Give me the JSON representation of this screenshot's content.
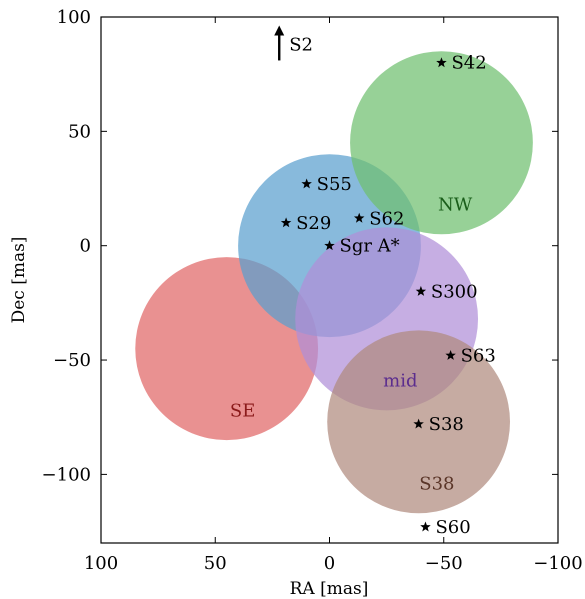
{
  "chart_data": {
    "type": "scatter",
    "xlabel": "RA [mas]",
    "ylabel": "Dec [mas]",
    "xlim": [
      100,
      -100
    ],
    "ylim": [
      -130,
      100
    ],
    "x_inverted": true,
    "xticks": [
      100,
      50,
      0,
      -50,
      -100
    ],
    "xtick_labels": [
      "100",
      "50",
      "0",
      "−50",
      "−100"
    ],
    "yticks": [
      100,
      50,
      0,
      -50,
      -100
    ],
    "ytick_labels": [
      "100",
      "50",
      "0",
      "−50",
      "−100"
    ],
    "grid": false,
    "regions": [
      {
        "label": "SE",
        "center": [
          45,
          -45
        ],
        "radius": 40,
        "color": "#e06666",
        "label_color": "#8b1a1a",
        "label_pos": [
          38,
          -72
        ]
      },
      {
        "label": "",
        "center": [
          0,
          0
        ],
        "radius": 40,
        "color": "#5a9fcf",
        "label_color": "#1f4e79",
        "label_pos": [
          0,
          0
        ]
      },
      {
        "label": "mid",
        "center": [
          -25,
          -32
        ],
        "radius": 40,
        "color": "#b08fd8",
        "label_color": "#5b2d8e",
        "label_pos": [
          -31,
          -59
        ]
      },
      {
        "label": "S38",
        "center": [
          -39,
          -77
        ],
        "radius": 40,
        "color": "#b08a7e",
        "label_color": "#5a3528",
        "label_pos": [
          -47,
          -104
        ]
      },
      {
        "label": "NW",
        "center": [
          -49,
          45
        ],
        "radius": 40,
        "color": "#6fbf6f",
        "label_color": "#1a5e1a",
        "label_pos": [
          -55,
          18
        ]
      }
    ],
    "stars": [
      {
        "name": "S42",
        "x": -49,
        "y": 80
      },
      {
        "name": "S55",
        "x": 10,
        "y": 27
      },
      {
        "name": "S29",
        "x": 19,
        "y": 10
      },
      {
        "name": "S62",
        "x": -13,
        "y": 12
      },
      {
        "name": "Sgr A*",
        "x": 0,
        "y": 0
      },
      {
        "name": "S300",
        "x": -40,
        "y": -20
      },
      {
        "name": "S63",
        "x": -53,
        "y": -48
      },
      {
        "name": "S38",
        "x": -39,
        "y": -78
      },
      {
        "name": "S60",
        "x": -42,
        "y": -123
      }
    ],
    "annotation": {
      "text": "S2",
      "x": 22,
      "y": 88,
      "arrow": "up"
    }
  }
}
